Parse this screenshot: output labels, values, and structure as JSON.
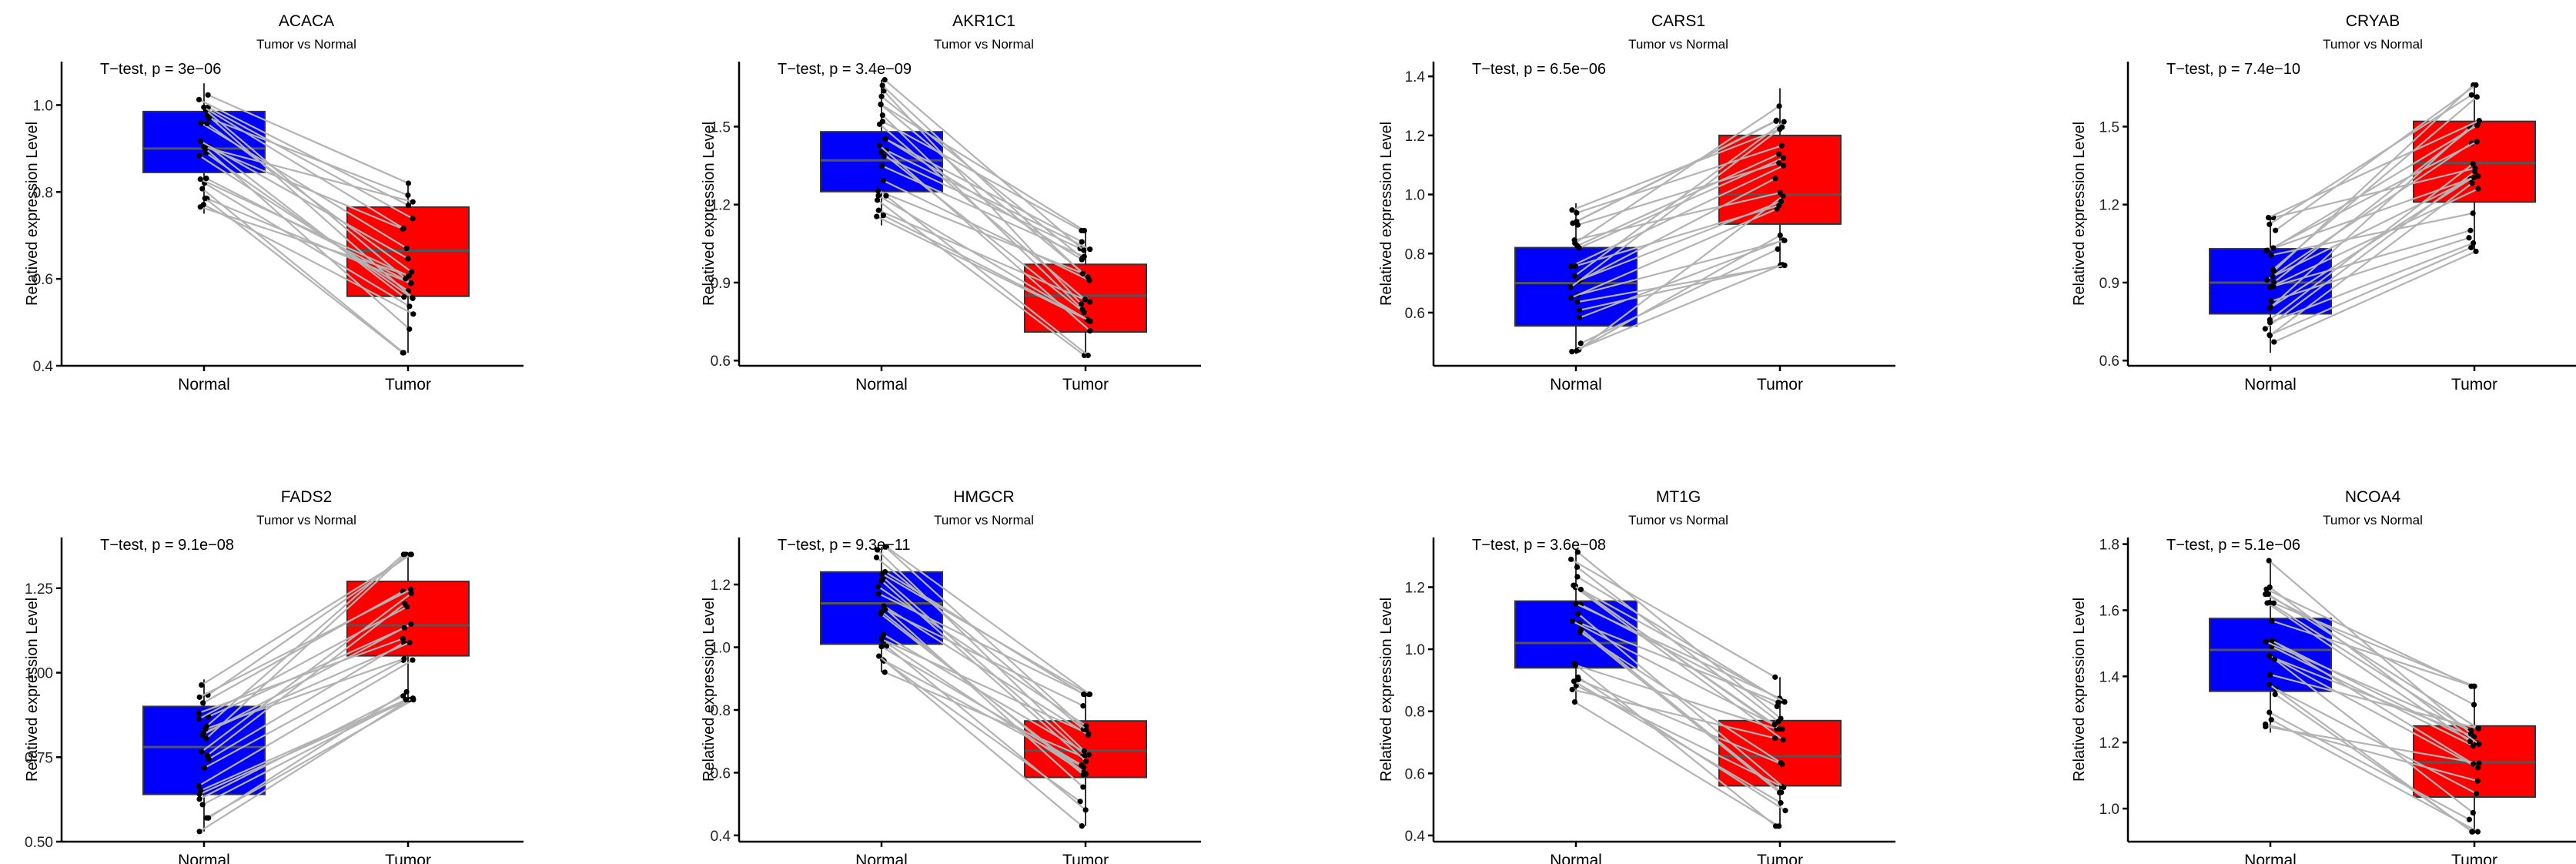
{
  "colors": {
    "normal": "#0000ff",
    "tumor": "#ff0000",
    "line": "#b3b3b3"
  },
  "chart_data": [
    {
      "type": "box",
      "title": "ACACA",
      "subtitle": "Tumor vs Normal",
      "test_label": "T−test, p = 3e−06",
      "ylabel": "Relatived expression Level",
      "categories": [
        "Normal",
        "Tumor"
      ],
      "ylim": [
        0.4,
        1.1
      ],
      "yticks": [
        0.4,
        0.6,
        0.8,
        1.0
      ],
      "ytick_labels": [
        "0.4",
        "0.6",
        "0.8",
        "1.0"
      ],
      "box": {
        "Normal": {
          "q1": 0.845,
          "median": 0.9,
          "q3": 0.985,
          "min": 0.75,
          "max": 1.05
        },
        "Tumor": {
          "q1": 0.56,
          "median": 0.665,
          "q3": 0.765,
          "min": 0.43,
          "max": 0.82
        }
      }
    },
    {
      "type": "box",
      "title": "AKR1C1",
      "subtitle": "Tumor vs Normal",
      "test_label": "T−test, p = 3.4e−09",
      "ylabel": "Relatived expression Level",
      "categories": [
        "Normal",
        "Tumor"
      ],
      "ylim": [
        0.58,
        1.75
      ],
      "yticks": [
        0.6,
        0.9,
        1.2,
        1.5
      ],
      "ytick_labels": [
        "0.6",
        "0.9",
        "1.2",
        "1.5"
      ],
      "box": {
        "Normal": {
          "q1": 1.25,
          "median": 1.37,
          "q3": 1.48,
          "min": 1.12,
          "max": 1.68
        },
        "Tumor": {
          "q1": 0.71,
          "median": 0.85,
          "q3": 0.97,
          "min": 0.62,
          "max": 1.1
        }
      }
    },
    {
      "type": "box",
      "title": "CARS1",
      "subtitle": "Tumor vs Normal",
      "test_label": "T−test, p = 6.5e−06",
      "ylabel": "Relatived expression Level",
      "categories": [
        "Normal",
        "Tumor"
      ],
      "ylim": [
        0.42,
        1.45
      ],
      "yticks": [
        0.6,
        0.8,
        1.0,
        1.2,
        1.4
      ],
      "ytick_labels": [
        "0.6",
        "0.8",
        "1.0",
        "1.2",
        "1.4"
      ],
      "box": {
        "Normal": {
          "q1": 0.555,
          "median": 0.7,
          "q3": 0.82,
          "min": 0.46,
          "max": 0.97
        },
        "Tumor": {
          "q1": 0.9,
          "median": 1.0,
          "q3": 1.2,
          "min": 0.76,
          "max": 1.36
        }
      }
    },
    {
      "type": "box",
      "title": "CRYAB",
      "subtitle": "Tumor vs Normal",
      "test_label": "T−test, p = 7.4e−10",
      "ylabel": "Relatived expression Level",
      "categories": [
        "Normal",
        "Tumor"
      ],
      "ylim": [
        0.58,
        1.75
      ],
      "yticks": [
        0.6,
        0.9,
        1.2,
        1.5
      ],
      "ytick_labels": [
        "0.6",
        "0.9",
        "1.2",
        "1.5"
      ],
      "box": {
        "Normal": {
          "q1": 0.78,
          "median": 0.9,
          "q3": 1.03,
          "min": 0.63,
          "max": 1.15
        },
        "Tumor": {
          "q1": 1.21,
          "median": 1.36,
          "q3": 1.52,
          "min": 1.02,
          "max": 1.66
        }
      }
    },
    {
      "type": "box",
      "title": "FADS2",
      "subtitle": "Tumor vs Normal",
      "test_label": "T−test, p = 9.1e−08",
      "ylabel": "Relatived expression Level",
      "categories": [
        "Normal",
        "Tumor"
      ],
      "ylim": [
        0.5,
        1.4
      ],
      "yticks": [
        0.5,
        0.75,
        1.0,
        1.25
      ],
      "ytick_labels": [
        "0.50",
        "0.75",
        "1.00",
        "1.25"
      ],
      "box": {
        "Normal": {
          "q1": 0.64,
          "median": 0.78,
          "q3": 0.9,
          "min": 0.53,
          "max": 0.98
        },
        "Tumor": {
          "q1": 1.05,
          "median": 1.14,
          "q3": 1.27,
          "min": 0.92,
          "max": 1.35
        }
      }
    },
    {
      "type": "box",
      "title": "HMGCR",
      "subtitle": "Tumor vs Normal",
      "test_label": "T−test, p = 9.3e−11",
      "ylabel": "Relatived expression Level",
      "categories": [
        "Normal",
        "Tumor"
      ],
      "ylim": [
        0.38,
        1.35
      ],
      "yticks": [
        0.4,
        0.6,
        0.8,
        1.0,
        1.2
      ],
      "ytick_labels": [
        "0.4",
        "0.6",
        "0.8",
        "1.0",
        "1.2"
      ],
      "box": {
        "Normal": {
          "q1": 1.01,
          "median": 1.14,
          "q3": 1.24,
          "min": 0.92,
          "max": 1.32
        },
        "Tumor": {
          "q1": 0.585,
          "median": 0.67,
          "q3": 0.765,
          "min": 0.43,
          "max": 0.85
        }
      }
    },
    {
      "type": "box",
      "title": "MT1G",
      "subtitle": "Tumor vs Normal",
      "test_label": "T−test, p = 3.6e−08",
      "ylabel": "Relatived expression Level",
      "categories": [
        "Normal",
        "Tumor"
      ],
      "ylim": [
        0.38,
        1.36
      ],
      "yticks": [
        0.4,
        0.6,
        0.8,
        1.0,
        1.2
      ],
      "ytick_labels": [
        "0.4",
        "0.6",
        "0.8",
        "1.0",
        "1.2"
      ],
      "box": {
        "Normal": {
          "q1": 0.94,
          "median": 1.02,
          "q3": 1.155,
          "min": 0.83,
          "max": 1.32
        },
        "Tumor": {
          "q1": 0.56,
          "median": 0.655,
          "q3": 0.77,
          "min": 0.43,
          "max": 0.91
        }
      }
    },
    {
      "type": "box",
      "title": "NCOA4",
      "subtitle": "Tumor vs Normal",
      "test_label": "T−test, p = 5.1e−06",
      "ylabel": "Relatived expression Level",
      "categories": [
        "Normal",
        "Tumor"
      ],
      "ylim": [
        0.9,
        1.82
      ],
      "yticks": [
        1.0,
        1.2,
        1.4,
        1.6,
        1.8
      ],
      "ytick_labels": [
        "1.0",
        "1.2",
        "1.4",
        "1.6",
        "1.8"
      ],
      "box": {
        "Normal": {
          "q1": 1.355,
          "median": 1.48,
          "q3": 1.575,
          "min": 1.23,
          "max": 1.75
        },
        "Tumor": {
          "q1": 1.035,
          "median": 1.14,
          "q3": 1.25,
          "min": 0.93,
          "max": 1.37
        }
      }
    }
  ]
}
